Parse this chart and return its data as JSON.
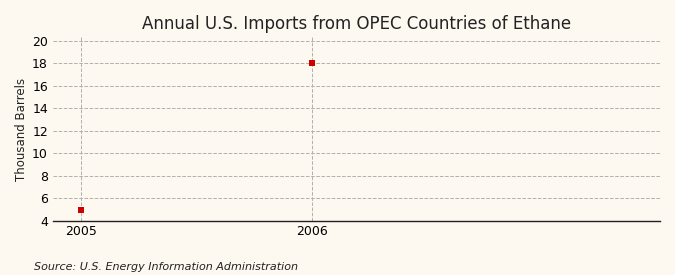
{
  "title": "Annual U.S. Imports from OPEC Countries of Ethane",
  "ylabel": "Thousand Barrels",
  "source": "Source: U.S. Energy Information Administration",
  "x": [
    2005,
    2006
  ],
  "y": [
    5,
    18
  ],
  "xlim": [
    2004.88,
    2007.5
  ],
  "ylim": [
    4,
    20.3
  ],
  "yticks": [
    4,
    6,
    8,
    10,
    12,
    14,
    16,
    18,
    20
  ],
  "xticks": [
    2005,
    2006
  ],
  "marker_color": "#cc0000",
  "marker_size": 4,
  "bg_color": "#fef9f0",
  "plot_bg_color": "#fef9f0",
  "grid_color": "#b0b0b0",
  "axis_color": "#222222",
  "title_fontsize": 12,
  "label_fontsize": 8.5,
  "tick_fontsize": 9,
  "source_fontsize": 8
}
